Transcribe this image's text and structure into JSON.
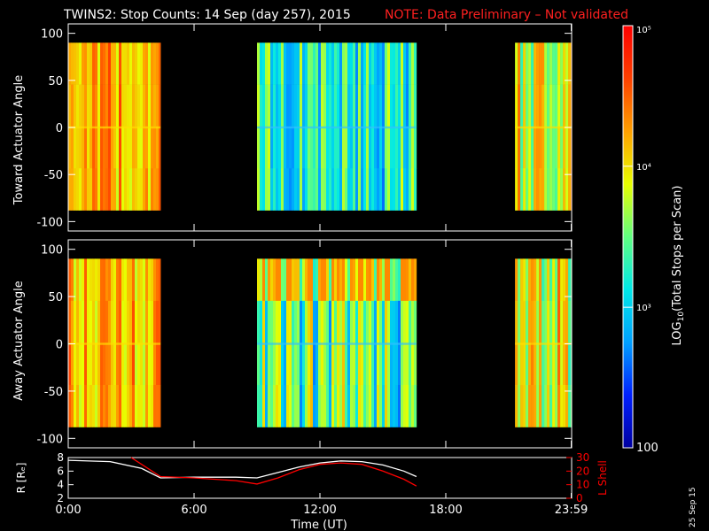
{
  "title": {
    "main": "TWINS2: Stop Counts: 14 Sep (day 257), 2015",
    "note": "NOTE: Data Preliminary – Not validated",
    "note_color": "#ff2020"
  },
  "side_date": "25 Sep 15",
  "chart_data": [
    {
      "type": "heatmap",
      "name": "toward",
      "ylabel": "Toward Actuator Angle",
      "xlim": [
        0,
        24
      ],
      "ylim": [
        -110,
        110
      ],
      "yticks": [
        100,
        50,
        0,
        -50,
        -100
      ],
      "y_extent": [
        -88,
        90
      ],
      "data_blocks": [
        {
          "x": [
            0.0,
            4.4
          ],
          "level_range": [
            0.62,
            0.86
          ]
        },
        {
          "x": [
            9.0,
            16.6
          ],
          "level_range": [
            0.22,
            0.6
          ]
        },
        {
          "x": [
            21.3,
            23.98
          ],
          "level_range": [
            0.45,
            0.82
          ]
        }
      ]
    },
    {
      "type": "heatmap",
      "name": "away",
      "ylabel": "Away Actuator Angle",
      "xlim": [
        0,
        24
      ],
      "ylim": [
        -110,
        110
      ],
      "yticks": [
        100,
        50,
        0,
        -50,
        -100
      ],
      "y_extent": [
        -88,
        90
      ],
      "data_blocks": [
        {
          "x": [
            0.0,
            4.4
          ],
          "level_range": [
            0.58,
            0.86
          ]
        },
        {
          "x": [
            9.0,
            16.6
          ],
          "level_range": [
            0.22,
            0.7
          ]
        },
        {
          "x": [
            21.3,
            23.98
          ],
          "level_range": [
            0.45,
            0.82
          ]
        }
      ]
    },
    {
      "type": "line",
      "name": "orbit",
      "xlabel": "Time (UT)",
      "xticks": [
        0,
        6,
        12,
        18,
        23.98
      ],
      "xtick_labels": [
        "0:00",
        "6:00",
        "12:00",
        "18:00",
        "23:59"
      ],
      "ylabel_left": "R [Rₑ]",
      "ylim_left": [
        2,
        8
      ],
      "yticks_left": [
        2,
        4,
        6,
        8
      ],
      "ylabel_right": "L Shell",
      "ylim_right": [
        0,
        30
      ],
      "yticks_right": [
        0,
        10,
        20,
        30
      ],
      "series": [
        {
          "name": "R",
          "axis": "left",
          "color": "#ffffff",
          "x": [
            0,
            2,
            3.5,
            4.4,
            6,
            8,
            9,
            10,
            11,
            12,
            13,
            14,
            15,
            16,
            16.6
          ],
          "y": [
            7.6,
            7.4,
            6.4,
            5.0,
            5.1,
            5.1,
            5.0,
            5.8,
            6.6,
            7.2,
            7.5,
            7.4,
            6.9,
            6.0,
            5.2
          ]
        },
        {
          "name": "L Shell",
          "axis": "right",
          "color": "#ff0000",
          "x": [
            3.0,
            3.5,
            4.4,
            6,
            8,
            9,
            10,
            11,
            12,
            13,
            14,
            15,
            16,
            16.6
          ],
          "y": [
            30,
            25,
            16,
            15,
            13,
            10.5,
            15,
            21,
            25,
            26,
            25,
            20,
            14,
            9
          ]
        }
      ]
    }
  ],
  "colorbar": {
    "label": "LOG10(Total Stops per Scan)",
    "ticks": [
      "10⁵",
      "10⁴",
      "10³",
      "100"
    ],
    "levels": [
      1.0,
      0.667,
      0.333,
      0.0
    ],
    "colors": [
      "#0000a0",
      "#0020ff",
      "#00a0ff",
      "#00e8e8",
      "#60ff80",
      "#e8ff00",
      "#ffa000",
      "#ff4000",
      "#ff0000",
      "#ffffff"
    ]
  }
}
